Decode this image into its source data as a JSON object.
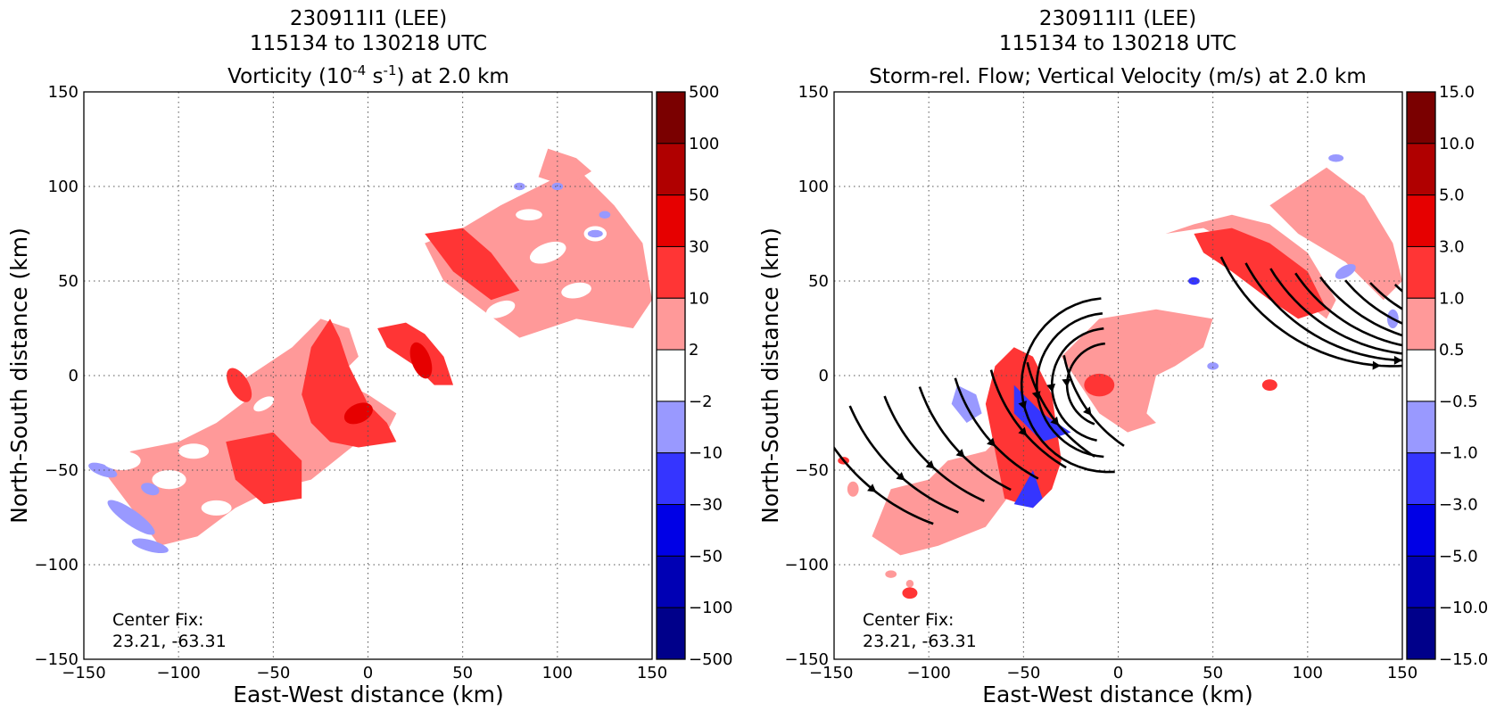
{
  "chart_data": [
    {
      "type": "heatmap",
      "title_lines": [
        "230911I1 (LEE)",
        "115134 to 130218 UTC"
      ],
      "title_main": {
        "pre": "Vorticity (10",
        "sup1": "-4",
        "mid": " s",
        "sup2": "-1",
        "post": ") at 2.0 km"
      },
      "xlabel": "East-West distance (km)",
      "ylabel": "North-South distance (km)",
      "xlim": [
        -150,
        150
      ],
      "ylim": [
        -150,
        150
      ],
      "xticks": [
        "−150",
        "−100",
        "−50",
        "0",
        "50",
        "100",
        "150"
      ],
      "yticks": [
        "150",
        "100",
        "50",
        "0",
        "−50",
        "−100",
        "−150"
      ],
      "grid": true,
      "colorbar": {
        "labels": [
          "500",
          "100",
          "50",
          "30",
          "10",
          "2",
          "−2",
          "−10",
          "−30",
          "−50",
          "−100",
          "−500"
        ],
        "colors": [
          "#7a0000",
          "#b00000",
          "#e60000",
          "#ff3535",
          "#ff9999",
          "#ffffff",
          "#9999ff",
          "#3535ff",
          "#0000e6",
          "#0000b4",
          "#00008a"
        ]
      },
      "annotation": [
        "Center Fix:",
        "23.21, -63.31"
      ],
      "field_bands": [
        "2 to 10",
        "10 to 30",
        "30 to 50",
        "−10 to −2"
      ]
    },
    {
      "type": "heatmap",
      "title_lines": [
        "230911I1 (LEE)",
        "115134 to 130218 UTC",
        "Storm-rel. Flow; Vertical Velocity (m/s) at 2.0 km"
      ],
      "xlabel": "East-West distance (km)",
      "ylabel": "North-South distance (km)",
      "xlim": [
        -150,
        150
      ],
      "ylim": [
        -150,
        150
      ],
      "xticks": [
        "−150",
        "−100",
        "−50",
        "0",
        "50",
        "100",
        "150"
      ],
      "yticks": [
        "150",
        "100",
        "50",
        "0",
        "−50",
        "−100",
        "−150"
      ],
      "grid": true,
      "colorbar": {
        "labels": [
          "15.0",
          "10.0",
          "5.0",
          "3.0",
          "1.0",
          "0.5",
          "−0.5",
          "−1.0",
          "−3.0",
          "−5.0",
          "−10.0",
          "−15.0"
        ],
        "colors": [
          "#7a0000",
          "#b00000",
          "#e60000",
          "#ff3535",
          "#ff9999",
          "#ffffff",
          "#9999ff",
          "#3535ff",
          "#0000e6",
          "#0000b4",
          "#00008a"
        ]
      },
      "annotation": [
        "Center Fix:",
        "23.21, -63.31"
      ],
      "overlay": "storm-relative streamlines",
      "field_bands": [
        "0.5 to 1.0",
        "1.0 to 3.0",
        "−1.0 to −0.5",
        "−3.0 to −1.0"
      ]
    }
  ]
}
